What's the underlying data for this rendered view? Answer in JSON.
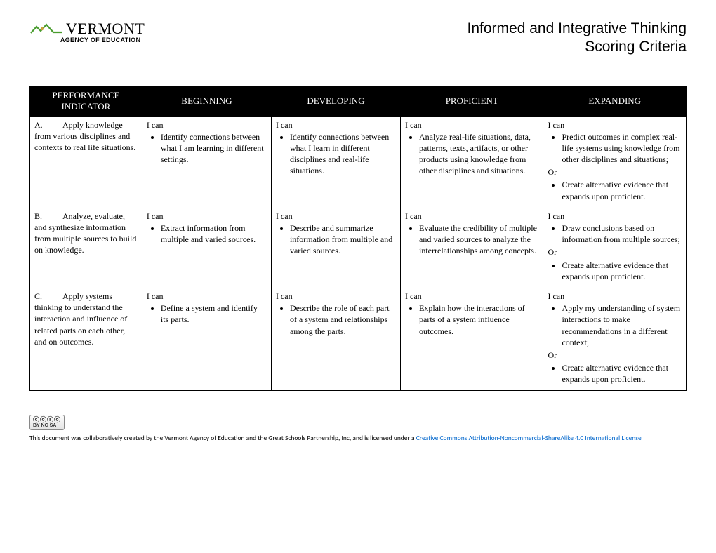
{
  "logo": {
    "brand": "VERMONT",
    "subline": "AGENCY OF EDUCATION",
    "accent_color": "#4a9d2f"
  },
  "title": {
    "line1": "Informed and Integrative Thinking",
    "line2": "Scoring Criteria"
  },
  "table": {
    "header_bg": "#000000",
    "header_fg": "#ffffff",
    "border_color": "#000000",
    "columns": [
      "PERFORMANCE INDICATOR",
      "BEGINNING",
      "DEVELOPING",
      "PROFICIENT",
      "EXPANDING"
    ],
    "ican_label": "I can",
    "or_label": "Or",
    "rows": [
      {
        "indicator_label": "A.",
        "indicator_text": "Apply knowledge from various disciplines and contexts to real life situations.",
        "beginning": [
          "Identify connections between what I am learning in different settings."
        ],
        "developing": [
          "Identify connections between what I learn in different disciplines and real-life situations."
        ],
        "proficient": [
          "Analyze real-life situations, data, patterns, texts, artifacts, or other products using knowledge from other disciplines and situations."
        ],
        "expanding_main": [
          "Predict outcomes in complex real-life systems using knowledge from other disciplines and situations;"
        ],
        "expanding_alt": [
          "Create alternative evidence that expands upon proficient."
        ]
      },
      {
        "indicator_label": "B.",
        "indicator_text": "Analyze, evaluate, and synthesize information from multiple sources to build on knowledge.",
        "beginning": [
          "Extract information from multiple and varied sources."
        ],
        "developing": [
          "Describe and summarize information from multiple and varied sources."
        ],
        "proficient": [
          "Evaluate the credibility of multiple and varied sources to analyze the interrelationships among concepts."
        ],
        "expanding_main": [
          "Draw conclusions based on information from multiple sources;"
        ],
        "expanding_alt": [
          "Create alternative evidence that expands upon proficient."
        ]
      },
      {
        "indicator_label": "C.",
        "indicator_text": "Apply systems thinking to understand the interaction and influence of related parts on each other, and on outcomes.",
        "beginning": [
          "Define a system and identify its parts."
        ],
        "developing": [
          "Describe the role of each part of a system and relationships among the parts."
        ],
        "proficient": [
          "Explain how the interactions of parts of a system influence outcomes."
        ],
        "expanding_main": [
          "Apply my understanding of system interactions to make recommendations in a different context;"
        ],
        "expanding_alt": [
          "Create alternative evidence that expands upon proficient."
        ]
      }
    ]
  },
  "footer": {
    "cc_top": "ⓒⓞⓢⓞ",
    "cc_bottom": "BY NC SA",
    "text_prefix": "This document was collaboratively created by the Vermont Agency of Education and the Great Schools Partnership, Inc, and is licensed under a ",
    "link_text": "Creative Commons Attribution-Noncommercial-ShareAlike 4.0 International License",
    "link_color": "#0066cc"
  }
}
